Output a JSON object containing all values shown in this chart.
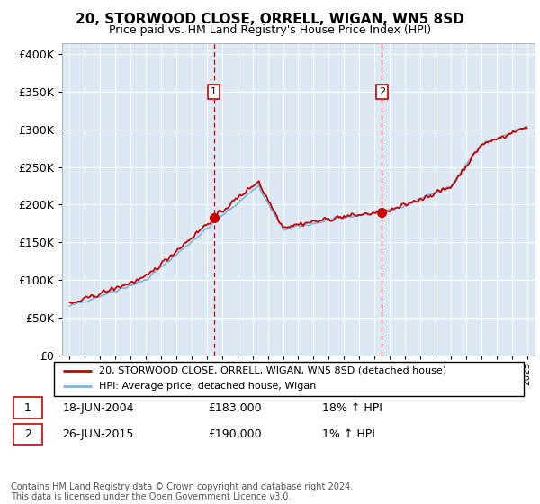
{
  "title": "20, STORWOOD CLOSE, ORRELL, WIGAN, WN5 8SD",
  "subtitle": "Price paid vs. HM Land Registry's House Price Index (HPI)",
  "ytick_values": [
    0,
    50000,
    100000,
    150000,
    200000,
    250000,
    300000,
    350000,
    400000
  ],
  "ylim": [
    0,
    415000
  ],
  "xlim_start": 1994.5,
  "xlim_end": 2025.5,
  "plot_bg_color": "#dce9f5",
  "grid_color": "#ffffff",
  "sale1_date": 2004.46,
  "sale1_price": 183000,
  "sale2_date": 2015.48,
  "sale2_price": 190000,
  "legend_line1": "20, STORWOOD CLOSE, ORRELL, WIGAN, WN5 8SD (detached house)",
  "legend_line2": "HPI: Average price, detached house, Wigan",
  "table_row1": [
    "1",
    "18-JUN-2004",
    "£183,000",
    "18% ↑ HPI"
  ],
  "table_row2": [
    "2",
    "26-JUN-2015",
    "£190,000",
    "1% ↑ HPI"
  ],
  "footer": "Contains HM Land Registry data © Crown copyright and database right 2024.\nThis data is licensed under the Open Government Licence v3.0.",
  "hpi_color": "#7ab8d9",
  "price_color": "#cc0000",
  "vline_color": "#cc0000",
  "title_fontsize": 11,
  "subtitle_fontsize": 9
}
